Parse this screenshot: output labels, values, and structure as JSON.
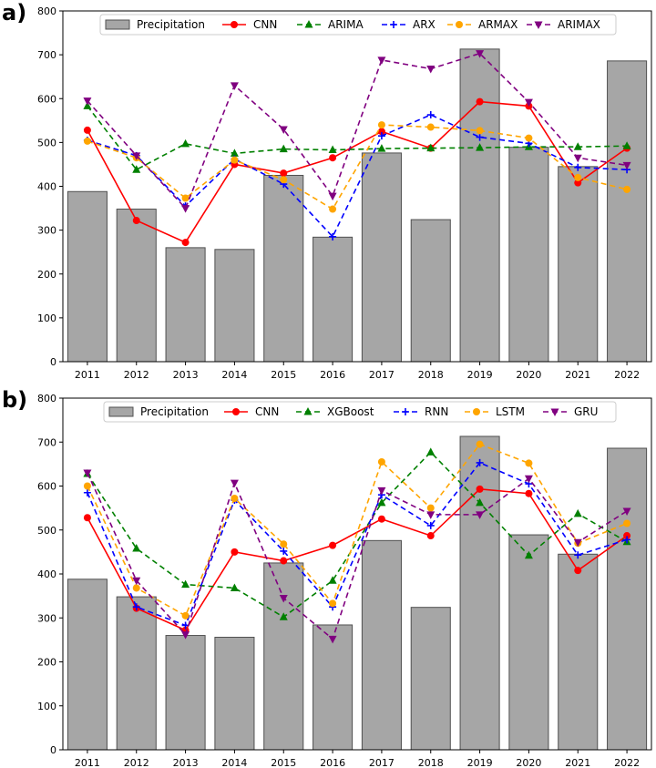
{
  "chart_data": [
    {
      "panel_label": "a)",
      "type": "bar+line",
      "categories": [
        "2011",
        "2012",
        "2013",
        "2014",
        "2015",
        "2016",
        "2017",
        "2018",
        "2019",
        "2020",
        "2021",
        "2022"
      ],
      "ylim": [
        0,
        800
      ],
      "yticks": [
        0,
        100,
        200,
        300,
        400,
        500,
        600,
        700,
        800
      ],
      "bar_series": {
        "name": "Precipitation",
        "color": "#a6a6a6",
        "values": [
          388,
          348,
          260,
          256,
          425,
          284,
          476,
          324,
          713,
          489,
          445,
          686
        ]
      },
      "series": [
        {
          "name": "CNN",
          "color": "#ff0000",
          "dash": "",
          "marker": "circle",
          "values": [
            528,
            322,
            272,
            450,
            430,
            465,
            525,
            487,
            593,
            583,
            408,
            487
          ]
        },
        {
          "name": "ARIMA",
          "color": "#008000",
          "dash": "6,4",
          "marker": "triangle-up",
          "values": [
            583,
            438,
            497,
            475,
            485,
            483,
            486,
            487,
            488,
            490,
            490,
            492
          ]
        },
        {
          "name": "ARX",
          "color": "#0000ff",
          "dash": "6,4",
          "marker": "plus",
          "values": [
            505,
            470,
            355,
            462,
            405,
            285,
            515,
            563,
            512,
            498,
            443,
            438
          ]
        },
        {
          "name": "ARMAX",
          "color": "#ffa500",
          "dash": "6,4",
          "marker": "circle",
          "values": [
            503,
            465,
            373,
            460,
            415,
            348,
            540,
            535,
            527,
            510,
            420,
            393
          ]
        },
        {
          "name": "ARIMAX",
          "color": "#800080",
          "dash": "6,4",
          "marker": "triangle-down",
          "values": [
            595,
            470,
            350,
            630,
            530,
            378,
            688,
            668,
            703,
            592,
            465,
            448
          ]
        }
      ]
    },
    {
      "panel_label": "b)",
      "type": "bar+line",
      "categories": [
        "2011",
        "2012",
        "2013",
        "2014",
        "2015",
        "2016",
        "2017",
        "2018",
        "2019",
        "2020",
        "2021",
        "2022"
      ],
      "ylim": [
        0,
        800
      ],
      "yticks": [
        0,
        100,
        200,
        300,
        400,
        500,
        600,
        700,
        800
      ],
      "bar_series": {
        "name": "Precipitation",
        "color": "#a6a6a6",
        "values": [
          388,
          348,
          260,
          256,
          425,
          284,
          476,
          324,
          713,
          489,
          445,
          686
        ]
      },
      "series": [
        {
          "name": "CNN",
          "color": "#ff0000",
          "dash": "",
          "marker": "circle",
          "values": [
            528,
            322,
            272,
            450,
            430,
            465,
            525,
            487,
            593,
            583,
            408,
            487
          ]
        },
        {
          "name": "XGBoost",
          "color": "#008000",
          "dash": "6,4",
          "marker": "triangle-up",
          "values": [
            628,
            458,
            376,
            368,
            302,
            385,
            562,
            677,
            562,
            442,
            537,
            473
          ]
        },
        {
          "name": "RNN",
          "color": "#0000ff",
          "dash": "6,4",
          "marker": "plus",
          "values": [
            585,
            325,
            283,
            568,
            452,
            325,
            580,
            510,
            653,
            605,
            443,
            478
          ]
        },
        {
          "name": "LSTM",
          "color": "#ffa500",
          "dash": "6,4",
          "marker": "circle",
          "values": [
            600,
            368,
            305,
            572,
            468,
            333,
            655,
            550,
            695,
            652,
            470,
            515
          ]
        },
        {
          "name": "GRU",
          "color": "#800080",
          "dash": "6,4",
          "marker": "triangle-down",
          "values": [
            630,
            385,
            262,
            607,
            345,
            252,
            590,
            535,
            535,
            617,
            472,
            543
          ]
        }
      ]
    }
  ]
}
